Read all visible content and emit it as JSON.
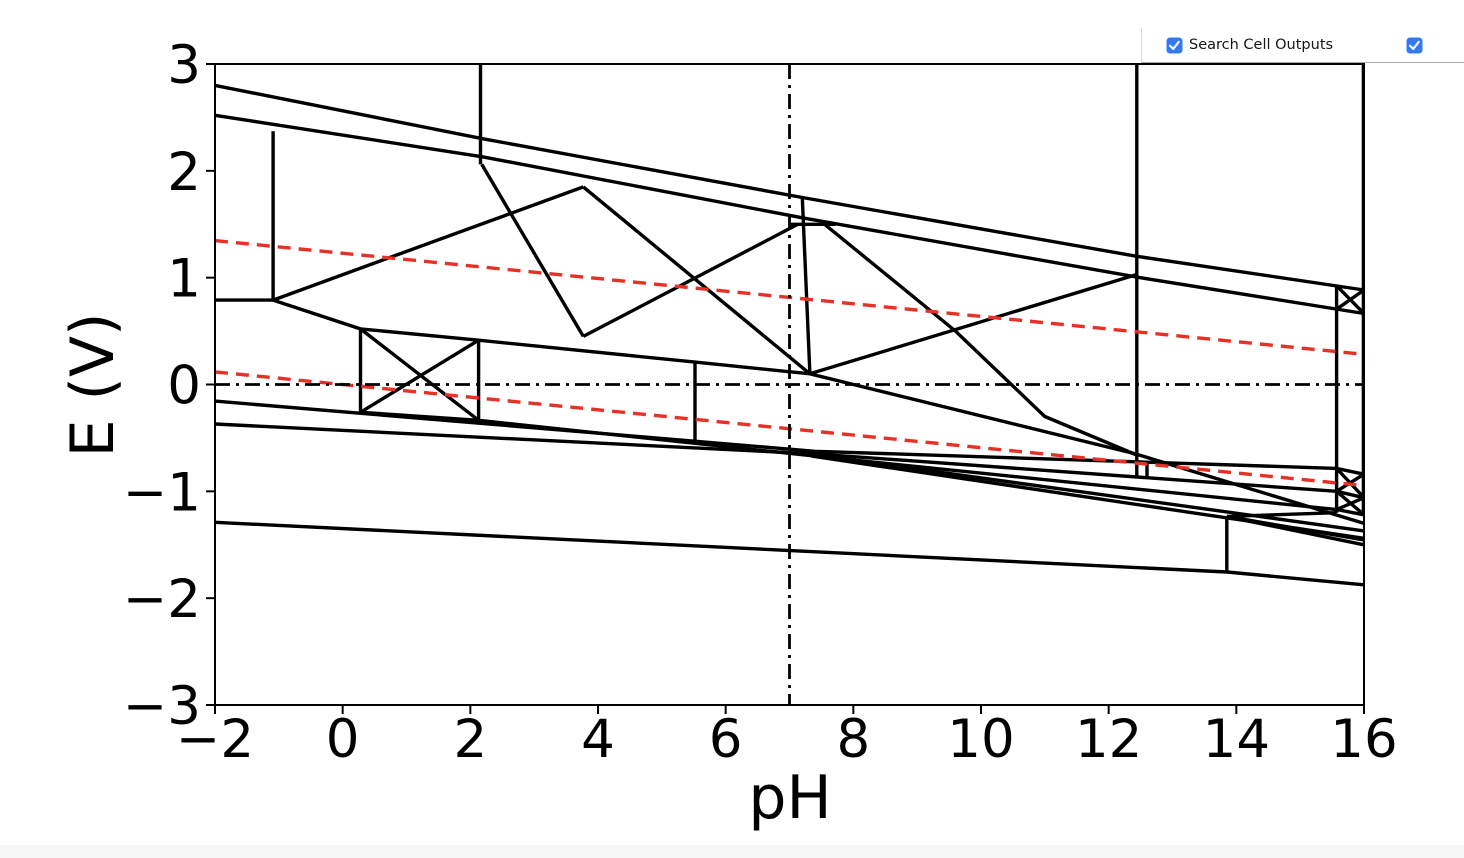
{
  "ui": {
    "search_panel": {
      "label": "Search Cell Outputs",
      "primary_checkbox_checked": true,
      "secondary_checkbox_checked": true,
      "accent_color": "#3478f6",
      "checkmark_color": "#ffffff"
    }
  },
  "chart_data": {
    "type": "line",
    "subtype": "pourbaix-diagram",
    "title": "",
    "xlabel": "pH",
    "ylabel": "E (V)",
    "xlim": [
      -2,
      16
    ],
    "ylim": [
      -3,
      3
    ],
    "grid": false,
    "legend": "none",
    "xticks": {
      "values": [
        -2,
        0,
        2,
        4,
        6,
        8,
        10,
        12,
        14,
        16
      ],
      "labels": [
        "−2",
        "0",
        "2",
        "4",
        "6",
        "8",
        "10",
        "12",
        "14",
        "16"
      ]
    },
    "yticks": {
      "values": [
        3,
        2,
        1,
        0,
        -1,
        -2,
        -3
      ],
      "labels": [
        "3",
        "2",
        "1",
        "0",
        "−1",
        "−2",
        "−3"
      ]
    },
    "colors": {
      "solid": "#000000",
      "water": "#e63226",
      "guide": "#000000"
    },
    "series": [
      {
        "name": "top-boundary-1",
        "style": "solid",
        "points": [
          [
            -2,
            2.8
          ],
          [
            2.2,
            2.3
          ],
          [
            7.2,
            1.75
          ],
          [
            12.44,
            1.2
          ],
          [
            16,
            0.885
          ]
        ]
      },
      {
        "name": "top-boundary-2",
        "style": "solid",
        "points": [
          [
            -2,
            2.52
          ],
          [
            2.2,
            2.13
          ],
          [
            7.2,
            1.56
          ],
          [
            12.44,
            1.005
          ],
          [
            16,
            0.665
          ]
        ]
      },
      {
        "name": "vertical-ph2.16",
        "style": "solid",
        "points": [
          [
            2.16,
            3
          ],
          [
            2.16,
            2.06
          ]
        ]
      },
      {
        "name": "vertical-ph-1.09",
        "style": "solid",
        "points": [
          [
            -1.09,
            2.37
          ],
          [
            -1.09,
            0.79
          ]
        ]
      },
      {
        "name": "horizontal-left-0.79",
        "style": "solid",
        "points": [
          [
            -2,
            0.79
          ],
          [
            -1.09,
            0.79
          ]
        ]
      },
      {
        "name": "rising-to-peak",
        "style": "solid",
        "points": [
          [
            -1.09,
            0.79
          ],
          [
            3.77,
            1.85
          ]
        ]
      },
      {
        "name": "steep-drop-from-2.16",
        "style": "solid",
        "points": [
          [
            2.18,
            2.06
          ],
          [
            3.77,
            0.45
          ]
        ]
      },
      {
        "name": "peak-descent",
        "style": "solid",
        "points": [
          [
            3.77,
            1.85
          ],
          [
            7.32,
            0.1
          ]
        ]
      },
      {
        "name": "rise-to-ph7",
        "style": "solid",
        "points": [
          [
            3.77,
            0.45
          ],
          [
            7.13,
            1.5
          ]
        ]
      },
      {
        "name": "short-shelf-1.5",
        "style": "solid",
        "points": [
          [
            7.02,
            1.5
          ],
          [
            7.72,
            1.5
          ]
        ]
      },
      {
        "name": "long-descent-ph7.5-12.4",
        "style": "solid",
        "points": [
          [
            7.55,
            1.5
          ],
          [
            9.6,
            0.5
          ],
          [
            11.0,
            -0.3
          ],
          [
            12.42,
            -0.655
          ]
        ]
      },
      {
        "name": "ascent-ph7.3-12.4",
        "style": "solid",
        "points": [
          [
            7.32,
            0.1
          ],
          [
            12.44,
            1.03
          ]
        ]
      },
      {
        "name": "near-vertical-ph7.2",
        "style": "solid",
        "points": [
          [
            7.2,
            1.75
          ],
          [
            7.32,
            0.1
          ]
        ]
      },
      {
        "name": "ridge-line",
        "style": "solid",
        "points": [
          [
            -1.09,
            0.79
          ],
          [
            0.28,
            0.52
          ],
          [
            2.13,
            0.415
          ],
          [
            5.52,
            0.21
          ],
          [
            7.32,
            0.1
          ]
        ]
      },
      {
        "name": "left-box-left-edge",
        "style": "solid",
        "points": [
          [
            0.28,
            0.52
          ],
          [
            0.28,
            -0.26
          ]
        ]
      },
      {
        "name": "left-box-right-edge",
        "style": "solid",
        "points": [
          [
            2.13,
            0.415
          ],
          [
            2.13,
            -0.335
          ]
        ]
      },
      {
        "name": "left-box-diagonal-1",
        "style": "solid",
        "points": [
          [
            0.28,
            0.52
          ],
          [
            2.13,
            -0.335
          ]
        ]
      },
      {
        "name": "left-box-diagonal-2",
        "style": "solid",
        "points": [
          [
            0.28,
            -0.26
          ],
          [
            2.13,
            0.415
          ]
        ]
      },
      {
        "name": "vertical-ph5.52",
        "style": "solid",
        "points": [
          [
            5.52,
            0.21
          ],
          [
            5.52,
            -0.555
          ]
        ]
      },
      {
        "name": "gentle-descent-from-ph7.3",
        "style": "solid",
        "points": [
          [
            7.32,
            0.1
          ],
          [
            12.42,
            -0.65
          ],
          [
            16,
            -1.3
          ]
        ]
      },
      {
        "name": "bundle-line-1",
        "style": "solid",
        "points": [
          [
            -2,
            -0.155
          ],
          [
            7.4,
            -0.625
          ],
          [
            15.57,
            -0.785
          ],
          [
            16,
            -0.84
          ]
        ]
      },
      {
        "name": "bundle-line-2",
        "style": "solid",
        "points": [
          [
            -2,
            -0.37
          ],
          [
            7.4,
            -0.65
          ],
          [
            15.57,
            -1.0
          ],
          [
            16,
            -1.06
          ]
        ]
      },
      {
        "name": "bundle-line-3",
        "style": "solid",
        "points": [
          [
            0.28,
            -0.26
          ],
          [
            2.13,
            -0.335
          ],
          [
            7.4,
            -0.67
          ],
          [
            15.57,
            -1.17
          ],
          [
            16,
            -1.22
          ]
        ]
      },
      {
        "name": "bundle-line-4",
        "style": "solid",
        "points": [
          [
            7.35,
            -0.655
          ],
          [
            16,
            -1.37
          ]
        ]
      },
      {
        "name": "bundle-line-5",
        "style": "solid",
        "points": [
          [
            7.35,
            -0.67
          ],
          [
            16,
            -1.44
          ]
        ]
      },
      {
        "name": "vertical-ph12.44",
        "style": "solid",
        "points": [
          [
            12.44,
            3
          ],
          [
            12.44,
            -0.875
          ]
        ]
      },
      {
        "name": "thin-box-left-edge-ph12.6",
        "style": "solid",
        "points": [
          [
            12.6,
            -0.73
          ],
          [
            12.6,
            -0.875
          ]
        ]
      },
      {
        "name": "vertical-ph15.57",
        "style": "solid",
        "points": [
          [
            15.57,
            0.925
          ],
          [
            15.57,
            -1.2
          ]
        ]
      },
      {
        "name": "vertical-ph15.99",
        "style": "solid",
        "points": [
          [
            15.99,
            3
          ],
          [
            15.99,
            -1.22
          ]
        ]
      },
      {
        "name": "right-top-box-diagonal-1",
        "style": "solid",
        "points": [
          [
            15.57,
            0.925
          ],
          [
            16,
            0.665
          ]
        ]
      },
      {
        "name": "right-top-box-diagonal-2",
        "style": "solid",
        "points": [
          [
            15.57,
            0.705
          ],
          [
            16,
            0.885
          ]
        ]
      },
      {
        "name": "right-boxA-diagonal-1",
        "style": "solid",
        "points": [
          [
            15.57,
            -0.785
          ],
          [
            16,
            -1.06
          ]
        ]
      },
      {
        "name": "right-boxA-diagonal-2",
        "style": "solid",
        "points": [
          [
            15.57,
            -1.0
          ],
          [
            16,
            -0.84
          ]
        ]
      },
      {
        "name": "right-boxB-diagonal-1",
        "style": "solid",
        "points": [
          [
            15.57,
            -1.0
          ],
          [
            16,
            -1.22
          ]
        ]
      },
      {
        "name": "right-boxB-diagonal-2",
        "style": "solid",
        "points": [
          [
            15.57,
            -1.17
          ],
          [
            16,
            -1.06
          ]
        ]
      },
      {
        "name": "step-line",
        "style": "solid",
        "points": [
          [
            13.85,
            -1.235
          ],
          [
            15.57,
            -1.2
          ]
        ]
      },
      {
        "name": "vertical-ph13.85",
        "style": "solid",
        "points": [
          [
            13.85,
            -1.235
          ],
          [
            13.85,
            -1.755
          ]
        ]
      },
      {
        "name": "step-descent-1",
        "style": "solid",
        "points": [
          [
            13.85,
            -1.235
          ],
          [
            16,
            -1.455
          ]
        ]
      },
      {
        "name": "step-descent-2",
        "style": "solid",
        "points": [
          [
            13.95,
            -1.25
          ],
          [
            16,
            -1.5
          ]
        ]
      },
      {
        "name": "bottom-boundary",
        "style": "solid",
        "points": [
          [
            -2,
            -1.29
          ],
          [
            13.85,
            -1.755
          ],
          [
            16,
            -1.875
          ]
        ]
      },
      {
        "name": "o2-water-line",
        "style": "water",
        "points": [
          [
            -2,
            1.347
          ],
          [
            16,
            0.283
          ]
        ]
      },
      {
        "name": "h2-water-line",
        "style": "water",
        "points": [
          [
            -2,
            0.118
          ],
          [
            16,
            -0.946
          ]
        ]
      },
      {
        "name": "guide-e0",
        "style": "guide",
        "points": [
          [
            -2,
            0
          ],
          [
            16,
            0
          ]
        ]
      },
      {
        "name": "guide-ph7",
        "style": "guide",
        "points": [
          [
            7,
            3
          ],
          [
            7,
            -3
          ]
        ]
      }
    ]
  }
}
